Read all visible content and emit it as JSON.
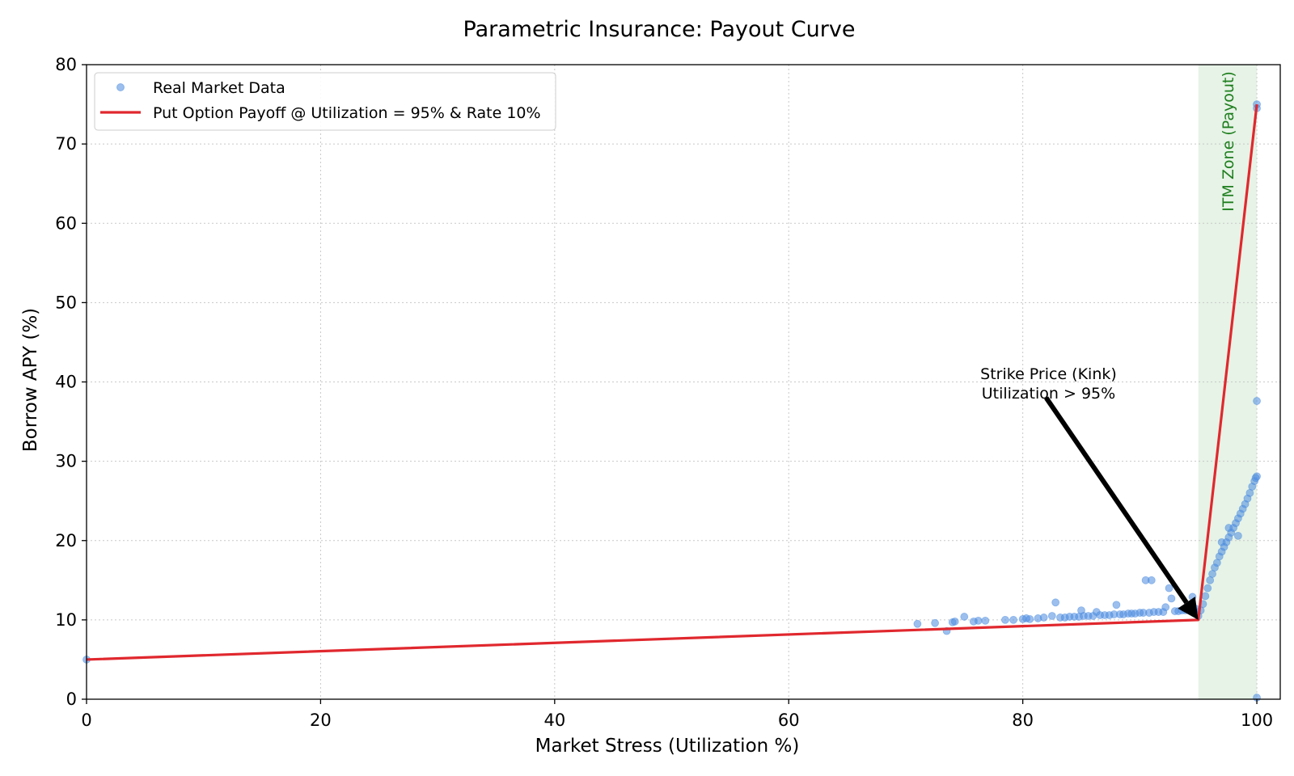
{
  "chart_data": {
    "type": "scatter",
    "title": "Parametric Insurance: Payout Curve",
    "xlabel": "Market Stress (Utilization %)",
    "ylabel": "Borrow APY (%)",
    "xlim": [
      0,
      102
    ],
    "ylim": [
      0,
      80
    ],
    "x_ticks": [
      0,
      20,
      40,
      60,
      80,
      100
    ],
    "y_ticks": [
      0,
      10,
      20,
      30,
      40,
      50,
      60,
      70,
      80
    ],
    "grid": true,
    "legend_position": "top-left",
    "series": [
      {
        "name": "Real Market Data",
        "kind": "scatter",
        "color": "#4a8be0",
        "points": [
          [
            0,
            5.0
          ],
          [
            71.0,
            9.5
          ],
          [
            72.5,
            9.6
          ],
          [
            73.5,
            8.6
          ],
          [
            74.0,
            9.7
          ],
          [
            74.2,
            9.8
          ],
          [
            75.0,
            10.4
          ],
          [
            75.8,
            9.8
          ],
          [
            76.2,
            9.9
          ],
          [
            76.8,
            9.9
          ],
          [
            78.5,
            10.0
          ],
          [
            79.2,
            10.0
          ],
          [
            80.0,
            10.1
          ],
          [
            80.3,
            10.2
          ],
          [
            80.6,
            10.1
          ],
          [
            81.3,
            10.2
          ],
          [
            81.8,
            10.3
          ],
          [
            82.5,
            10.5
          ],
          [
            82.8,
            12.2
          ],
          [
            83.2,
            10.3
          ],
          [
            83.6,
            10.3
          ],
          [
            84.0,
            10.4
          ],
          [
            84.4,
            10.4
          ],
          [
            84.8,
            10.4
          ],
          [
            85.0,
            11.2
          ],
          [
            85.2,
            10.5
          ],
          [
            85.6,
            10.5
          ],
          [
            86.0,
            10.5
          ],
          [
            86.3,
            11.0
          ],
          [
            86.6,
            10.6
          ],
          [
            87.0,
            10.6
          ],
          [
            87.4,
            10.6
          ],
          [
            87.8,
            10.7
          ],
          [
            88.0,
            11.9
          ],
          [
            88.3,
            10.7
          ],
          [
            88.6,
            10.7
          ],
          [
            89.0,
            10.8
          ],
          [
            89.3,
            10.8
          ],
          [
            89.6,
            10.8
          ],
          [
            90.0,
            10.9
          ],
          [
            90.3,
            10.9
          ],
          [
            90.5,
            15.0
          ],
          [
            91.0,
            15.0
          ],
          [
            90.8,
            10.9
          ],
          [
            91.2,
            11.0
          ],
          [
            91.6,
            11.0
          ],
          [
            92.0,
            11.0
          ],
          [
            92.2,
            11.6
          ],
          [
            92.5,
            14.0
          ],
          [
            92.7,
            12.7
          ],
          [
            93.0,
            11.1
          ],
          [
            93.3,
            11.1
          ],
          [
            93.6,
            11.2
          ],
          [
            93.9,
            11.2
          ],
          [
            94.2,
            11.3
          ],
          [
            94.5,
            12.9
          ],
          [
            94.8,
            11.4
          ],
          [
            95.0,
            10.5
          ],
          [
            95.2,
            11.2
          ],
          [
            95.4,
            12.0
          ],
          [
            95.6,
            13.0
          ],
          [
            95.8,
            14.0
          ],
          [
            96.0,
            15.0
          ],
          [
            96.2,
            15.8
          ],
          [
            96.4,
            16.6
          ],
          [
            96.6,
            17.2
          ],
          [
            96.8,
            18.0
          ],
          [
            97.0,
            18.6
          ],
          [
            97.0,
            19.8
          ],
          [
            97.2,
            19.2
          ],
          [
            97.4,
            19.8
          ],
          [
            97.6,
            20.4
          ],
          [
            97.6,
            21.6
          ],
          [
            97.8,
            21.0
          ],
          [
            98.0,
            21.6
          ],
          [
            98.2,
            22.2
          ],
          [
            98.4,
            22.8
          ],
          [
            98.4,
            20.6
          ],
          [
            98.6,
            23.4
          ],
          [
            98.8,
            24.0
          ],
          [
            99.0,
            24.6
          ],
          [
            99.2,
            25.3
          ],
          [
            99.4,
            26.0
          ],
          [
            99.6,
            26.8
          ],
          [
            99.8,
            27.5
          ],
          [
            100.0,
            28.1
          ],
          [
            99.9,
            27.9
          ],
          [
            100.0,
            37.6
          ],
          [
            100.0,
            75.0
          ],
          [
            100.0,
            74.5
          ],
          [
            100.0,
            0.2
          ]
        ]
      },
      {
        "name": "Put Option Payoff @ Utilization = 95% & Rate 10%",
        "kind": "line",
        "color": "#e0282e",
        "x": [
          0,
          95,
          100
        ],
        "y": [
          5,
          10,
          75
        ]
      }
    ],
    "shaded_region": {
      "label": "ITM Zone (Payout)",
      "x_range": [
        95,
        100
      ],
      "color": "#e6f3e6"
    },
    "annotation": {
      "line1": "Strike Price (Kink)",
      "line2": "Utilization > 95%",
      "text_at": [
        75,
        41.5
      ],
      "arrow_from": [
        82,
        38
      ],
      "arrow_to": [
        95,
        10
      ]
    }
  }
}
